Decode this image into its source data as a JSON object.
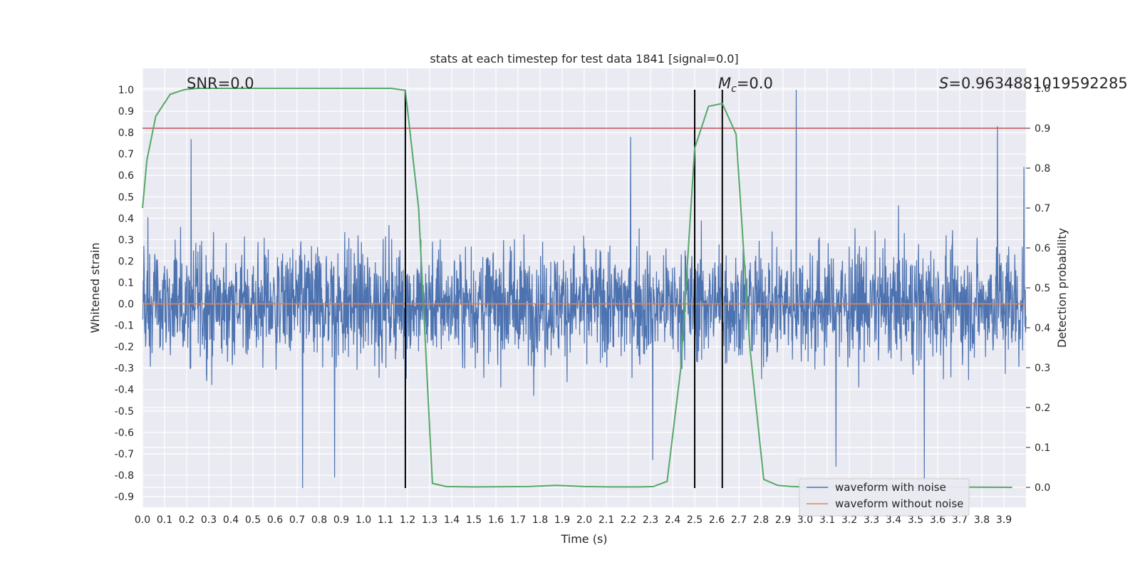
{
  "chart_data": {
    "type": "line",
    "title": "stats at each timestep for test data 1841 [signal=0.0]",
    "xlabel": "Time (s)",
    "ylabel": "Whitened strain",
    "y2label": "Detection probability",
    "xlim": [
      0.0,
      4.0
    ],
    "ylim": [
      -0.95,
      1.1
    ],
    "y2lim": [
      -0.05,
      1.05
    ],
    "x_ticks": [
      "0.0",
      "0.1",
      "0.2",
      "0.3",
      "0.4",
      "0.5",
      "0.6",
      "0.7",
      "0.8",
      "0.9",
      "1.0",
      "1.1",
      "1.2",
      "1.3",
      "1.4",
      "1.5",
      "1.6",
      "1.7",
      "1.8",
      "1.9",
      "2.0",
      "2.1",
      "2.2",
      "2.3",
      "2.4",
      "2.5",
      "2.6",
      "2.7",
      "2.8",
      "2.9",
      "3.0",
      "3.1",
      "3.2",
      "3.3",
      "3.4",
      "3.5",
      "3.6",
      "3.7",
      "3.8",
      "3.9"
    ],
    "y_ticks": [
      "-0.9",
      "-0.8",
      "-0.7",
      "-0.6",
      "-0.5",
      "-0.4",
      "-0.3",
      "-0.2",
      "-0.1",
      "0.0",
      "0.1",
      "0.2",
      "0.3",
      "0.4",
      "0.5",
      "0.6",
      "0.7",
      "0.8",
      "0.9",
      "1.0"
    ],
    "y2_ticks": [
      "0.0",
      "0.1",
      "0.2",
      "0.3",
      "0.4",
      "0.5",
      "0.6",
      "0.7",
      "0.8",
      "0.9",
      "1.0"
    ],
    "grid": true,
    "legend_position": "bottom-right",
    "annotations": {
      "snr": "SNR=0.0",
      "mc_symbol": "M",
      "mc_sub": "c",
      "mc_value": "=0.0",
      "s_symbol": "S",
      "s_value": "=0.9634881019592285"
    },
    "series": [
      {
        "name": "waveform with noise",
        "color": "#4c72b0",
        "style": "noise",
        "envelope": [
          0.45,
          -0.55
        ]
      },
      {
        "name": "waveform without noise",
        "color": "#dd8452",
        "value": 0.0
      }
    ],
    "threshold": {
      "y2": 0.9,
      "color": "#c44e52"
    },
    "vlines": [
      {
        "x": 1.19,
        "y": [
          -0.86,
          1.0
        ]
      },
      {
        "x": 2.5,
        "y": [
          -0.86,
          1.0
        ]
      },
      {
        "x": 2.625,
        "y": [
          -0.86,
          1.0
        ]
      }
    ],
    "detection_probability": {
      "color": "#55a868",
      "x": [
        0.0,
        0.02,
        0.06,
        0.125,
        0.19,
        0.25,
        0.5,
        1.0,
        1.125,
        1.19,
        1.25,
        1.3125,
        1.375,
        1.5,
        1.75,
        1.875,
        2.0,
        2.125,
        2.25,
        2.3125,
        2.375,
        2.4375,
        2.5,
        2.5625,
        2.625,
        2.6875,
        2.75,
        2.8125,
        2.875,
        2.9375,
        3.0,
        3.5,
        3.9375
      ],
      "y": [
        0.7,
        0.82,
        0.93,
        0.985,
        0.997,
        1.0,
        1.0,
        1.0,
        1.0,
        0.995,
        0.7,
        0.01,
        0.002,
        0.001,
        0.002,
        0.005,
        0.002,
        0.001,
        0.001,
        0.002,
        0.015,
        0.3,
        0.85,
        0.955,
        0.962,
        0.885,
        0.35,
        0.02,
        0.005,
        0.002,
        0.001,
        0.001,
        0.0
      ]
    },
    "peaks": [
      {
        "x": 0.22,
        "y": 0.77
      },
      {
        "x": 0.725,
        "y": -0.86
      },
      {
        "x": 0.87,
        "y": -0.81
      },
      {
        "x": 2.21,
        "y": 0.78
      },
      {
        "x": 2.31,
        "y": -0.73
      },
      {
        "x": 2.96,
        "y": 1.0
      },
      {
        "x": 3.14,
        "y": -0.76
      },
      {
        "x": 3.54,
        "y": -0.82
      },
      {
        "x": 3.87,
        "y": 0.83
      },
      {
        "x": 3.99,
        "y": 0.64
      }
    ]
  }
}
